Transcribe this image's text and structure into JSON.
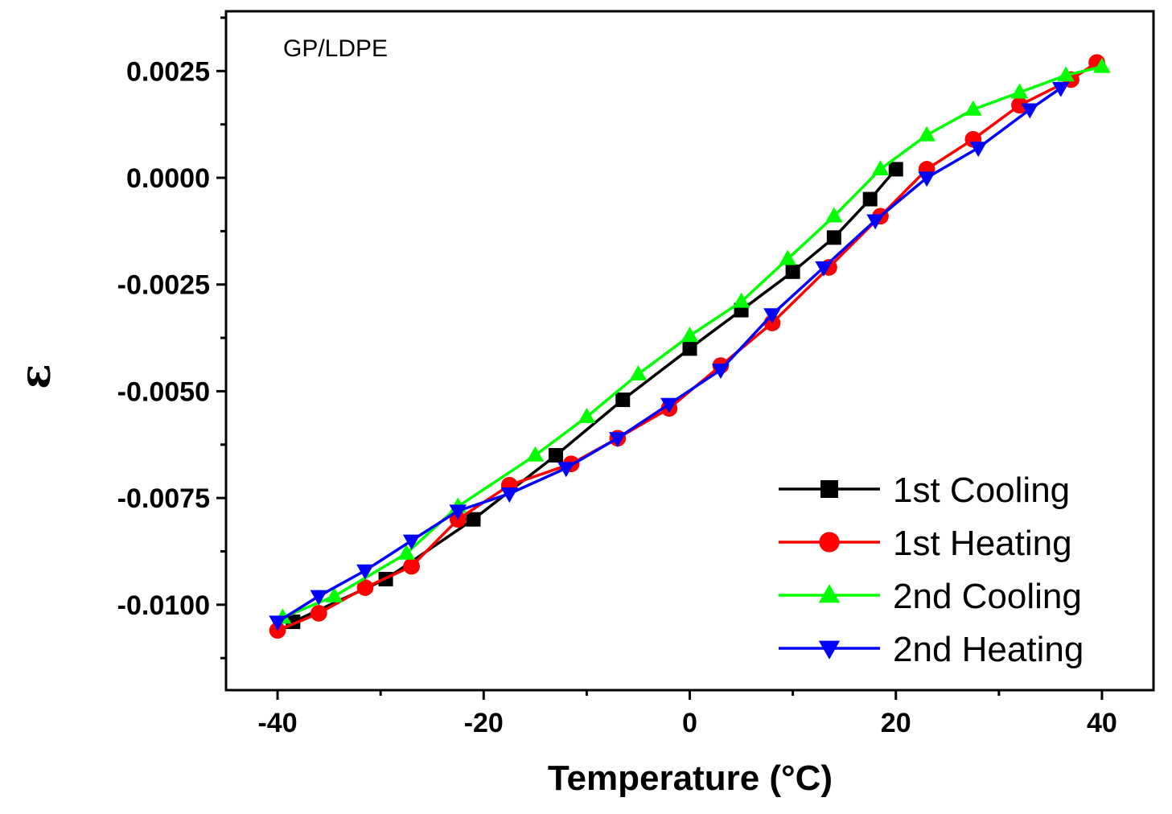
{
  "chart_data": {
    "type": "line",
    "title": "",
    "annotation": "GP/LDPE",
    "xlabel": "Temperature (°C)",
    "ylabel": "ε",
    "xlim": [
      -45,
      45
    ],
    "ylim": [
      -0.012,
      0.0039
    ],
    "x_ticks": [
      -40,
      -20,
      0,
      20,
      40
    ],
    "x_tick_labels": [
      "-40",
      "-20",
      "0",
      "20",
      "40"
    ],
    "y_ticks": [
      0.0025,
      0.0,
      -0.0025,
      -0.005,
      -0.0075,
      -0.01
    ],
    "y_tick_labels": [
      "0.0025",
      "0.0000",
      "-0.0025",
      "-0.0050",
      "-0.0075",
      "-0.0100"
    ],
    "legend_position": "bottom-right",
    "series": [
      {
        "name": "1st Cooling",
        "color": "#000000",
        "marker": "square",
        "x": [
          20,
          17.5,
          14,
          10,
          5,
          0,
          -6.5,
          -13,
          -21,
          -29.5,
          -38.5
        ],
        "y": [
          0.0002,
          -0.0005,
          -0.0014,
          -0.0022,
          -0.0031,
          -0.004,
          -0.0052,
          -0.0065,
          -0.008,
          -0.0094,
          -0.0104
        ]
      },
      {
        "name": "1st Heating",
        "color": "#ff0000",
        "marker": "circle",
        "x": [
          -40,
          -36,
          -31.5,
          -27,
          -22.5,
          -17.5,
          -11.5,
          -7,
          -2,
          3,
          8,
          13.5,
          18.5,
          23,
          27.5,
          32,
          37,
          39.5
        ],
        "y": [
          -0.0106,
          -0.0102,
          -0.0096,
          -0.0091,
          -0.008,
          -0.0072,
          -0.0067,
          -0.0061,
          -0.0054,
          -0.0044,
          -0.0034,
          -0.0021,
          -0.0009,
          0.0002,
          0.0009,
          0.0017,
          0.0023,
          0.0027
        ]
      },
      {
        "name": "2nd Cooling",
        "color": "#00ff00",
        "marker": "triangle-up",
        "x": [
          40,
          36.5,
          32,
          27.5,
          23,
          18.5,
          14,
          9.5,
          5,
          0,
          -5,
          -10,
          -15,
          -22.5,
          -27.5,
          -34.5,
          -39.5
        ],
        "y": [
          0.0026,
          0.0024,
          0.002,
          0.0016,
          0.001,
          0.0002,
          -0.0009,
          -0.0019,
          -0.0029,
          -0.0037,
          -0.0046,
          -0.0056,
          -0.0065,
          -0.0077,
          -0.0088,
          -0.0098,
          -0.0103
        ]
      },
      {
        "name": "2nd Heating",
        "color": "#0000ff",
        "marker": "triangle-down",
        "x": [
          -40,
          -36,
          -31.5,
          -27,
          -22.5,
          -17.5,
          -12,
          -7,
          -2,
          3,
          8,
          13,
          18,
          23,
          28,
          33,
          36
        ],
        "y": [
          -0.0104,
          -0.0098,
          -0.0092,
          -0.0085,
          -0.0078,
          -0.0074,
          -0.0068,
          -0.0061,
          -0.0053,
          -0.0045,
          -0.0032,
          -0.0021,
          -0.001,
          0.0,
          0.0007,
          0.0016,
          0.0021
        ]
      }
    ]
  }
}
